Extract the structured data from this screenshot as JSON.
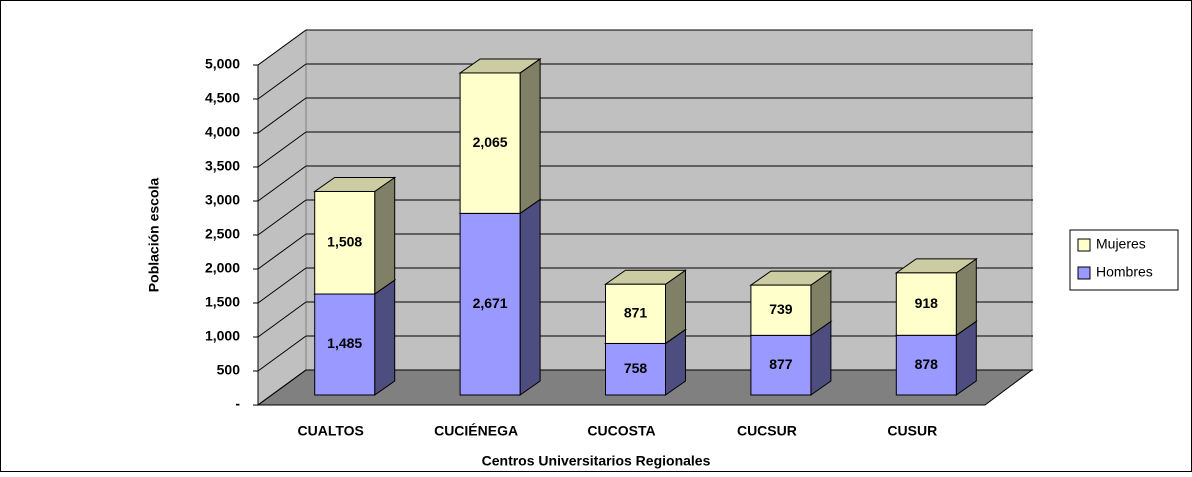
{
  "chart_data": {
    "type": "bar3d_stacked",
    "title_y": "Población escola",
    "title_x": "Centros Universitarios Regionales",
    "categories": [
      "CUALTOS",
      "CUCIÉNEGA",
      "CUCOSTA",
      "CUCSUR",
      "CUSUR"
    ],
    "series": [
      {
        "name": "Hombres",
        "color": "#9999ff",
        "side_color": "#4d4d80",
        "top_color": "#b8b8ff",
        "values": [
          1485,
          2671,
          758,
          877,
          878
        ],
        "value_labels": [
          "1,485",
          "2,671",
          "758",
          "877",
          "878"
        ]
      },
      {
        "name": "Mujeres",
        "color": "#ffffcc",
        "side_color": "#808066",
        "top_color": "#cccca3",
        "values": [
          1508,
          2065,
          871,
          739,
          918
        ],
        "value_labels": [
          "1,508",
          "2,065",
          "871",
          "739",
          "918"
        ]
      }
    ],
    "ylim": [
      0,
      5000
    ],
    "yticks": [
      {
        "value": 0,
        "label": "-"
      },
      500,
      {
        "value": 1000,
        "label": "1,000"
      },
      {
        "value": 1500,
        "label": "1,500"
      },
      {
        "value": 2000,
        "label": "2,000"
      },
      {
        "value": 2500,
        "label": "2,500"
      },
      {
        "value": 3000,
        "label": "3,000"
      },
      {
        "value": 3500,
        "label": "3,500"
      },
      {
        "value": 4000,
        "label": "4,000"
      },
      {
        "value": 4500,
        "label": "4,500"
      },
      {
        "value": 5000,
        "label": "5,000"
      }
    ],
    "grid": true,
    "legend": "right"
  }
}
